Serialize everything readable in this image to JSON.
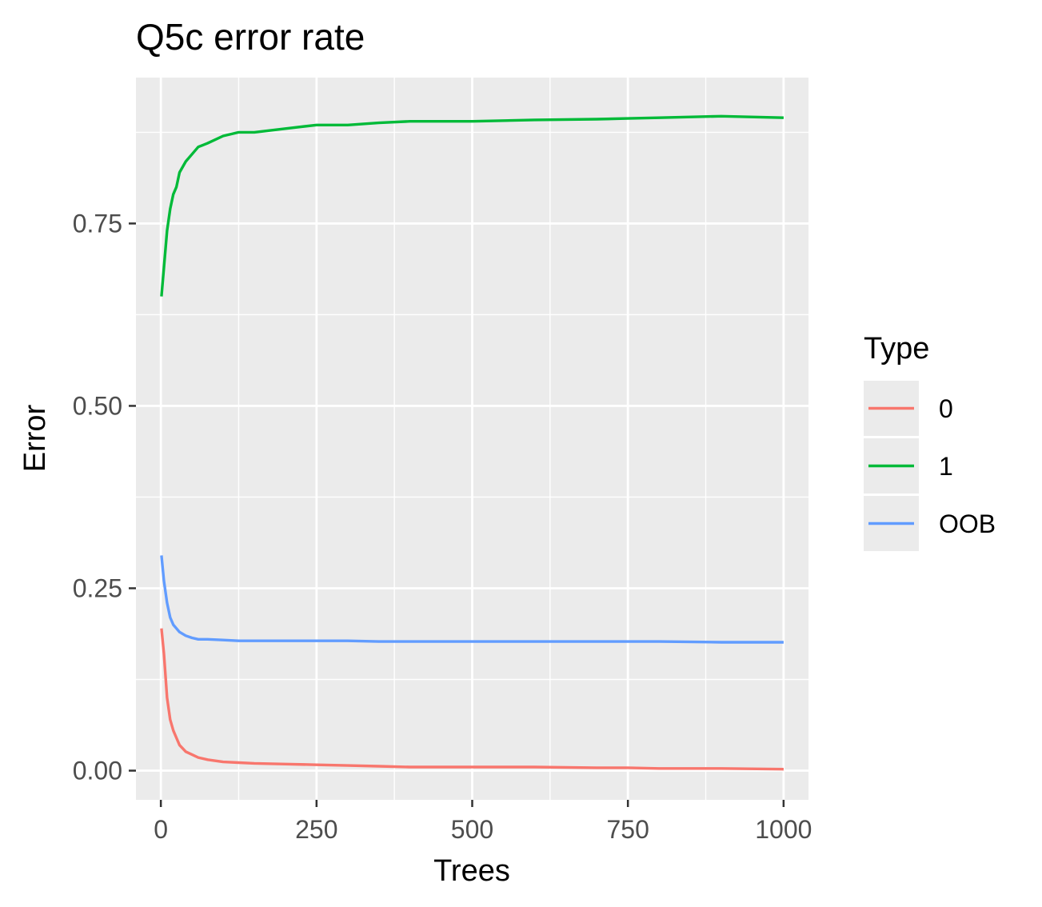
{
  "chart_data": {
    "type": "line",
    "title": "Q5c error rate",
    "xlabel": "Trees",
    "ylabel": "Error",
    "xlim": [
      -40,
      1040
    ],
    "ylim": [
      -0.04,
      0.95
    ],
    "x_ticks": [
      0,
      250,
      500,
      750,
      1000
    ],
    "x_tick_labels": [
      "0",
      "250",
      "500",
      "750",
      "1000"
    ],
    "y_ticks": [
      0.0,
      0.25,
      0.5,
      0.75
    ],
    "y_tick_labels": [
      "0.00",
      "0.25",
      "0.50",
      "0.75"
    ],
    "grid": true,
    "legend": {
      "title": "Type",
      "position": "right"
    },
    "x": [
      1,
      5,
      10,
      15,
      20,
      25,
      30,
      40,
      50,
      60,
      75,
      100,
      125,
      150,
      200,
      250,
      300,
      350,
      400,
      500,
      600,
      700,
      750,
      800,
      900,
      1000
    ],
    "series": [
      {
        "name": "0",
        "color": "#F8766D",
        "values": [
          0.195,
          0.16,
          0.1,
          0.07,
          0.055,
          0.045,
          0.035,
          0.026,
          0.022,
          0.018,
          0.015,
          0.012,
          0.011,
          0.01,
          0.009,
          0.008,
          0.007,
          0.006,
          0.005,
          0.005,
          0.005,
          0.004,
          0.004,
          0.003,
          0.003,
          0.002
        ]
      },
      {
        "name": "1",
        "color": "#00BA38",
        "values": [
          0.65,
          0.69,
          0.74,
          0.77,
          0.79,
          0.8,
          0.82,
          0.835,
          0.845,
          0.855,
          0.86,
          0.87,
          0.875,
          0.875,
          0.88,
          0.885,
          0.885,
          0.888,
          0.89,
          0.89,
          0.892,
          0.893,
          0.894,
          0.895,
          0.897,
          0.895
        ]
      },
      {
        "name": "OOB",
        "color": "#619CFF",
        "values": [
          0.295,
          0.26,
          0.23,
          0.21,
          0.2,
          0.195,
          0.19,
          0.185,
          0.182,
          0.18,
          0.18,
          0.179,
          0.178,
          0.178,
          0.178,
          0.178,
          0.178,
          0.177,
          0.177,
          0.177,
          0.177,
          0.177,
          0.177,
          0.177,
          0.176,
          0.176
        ]
      }
    ]
  }
}
